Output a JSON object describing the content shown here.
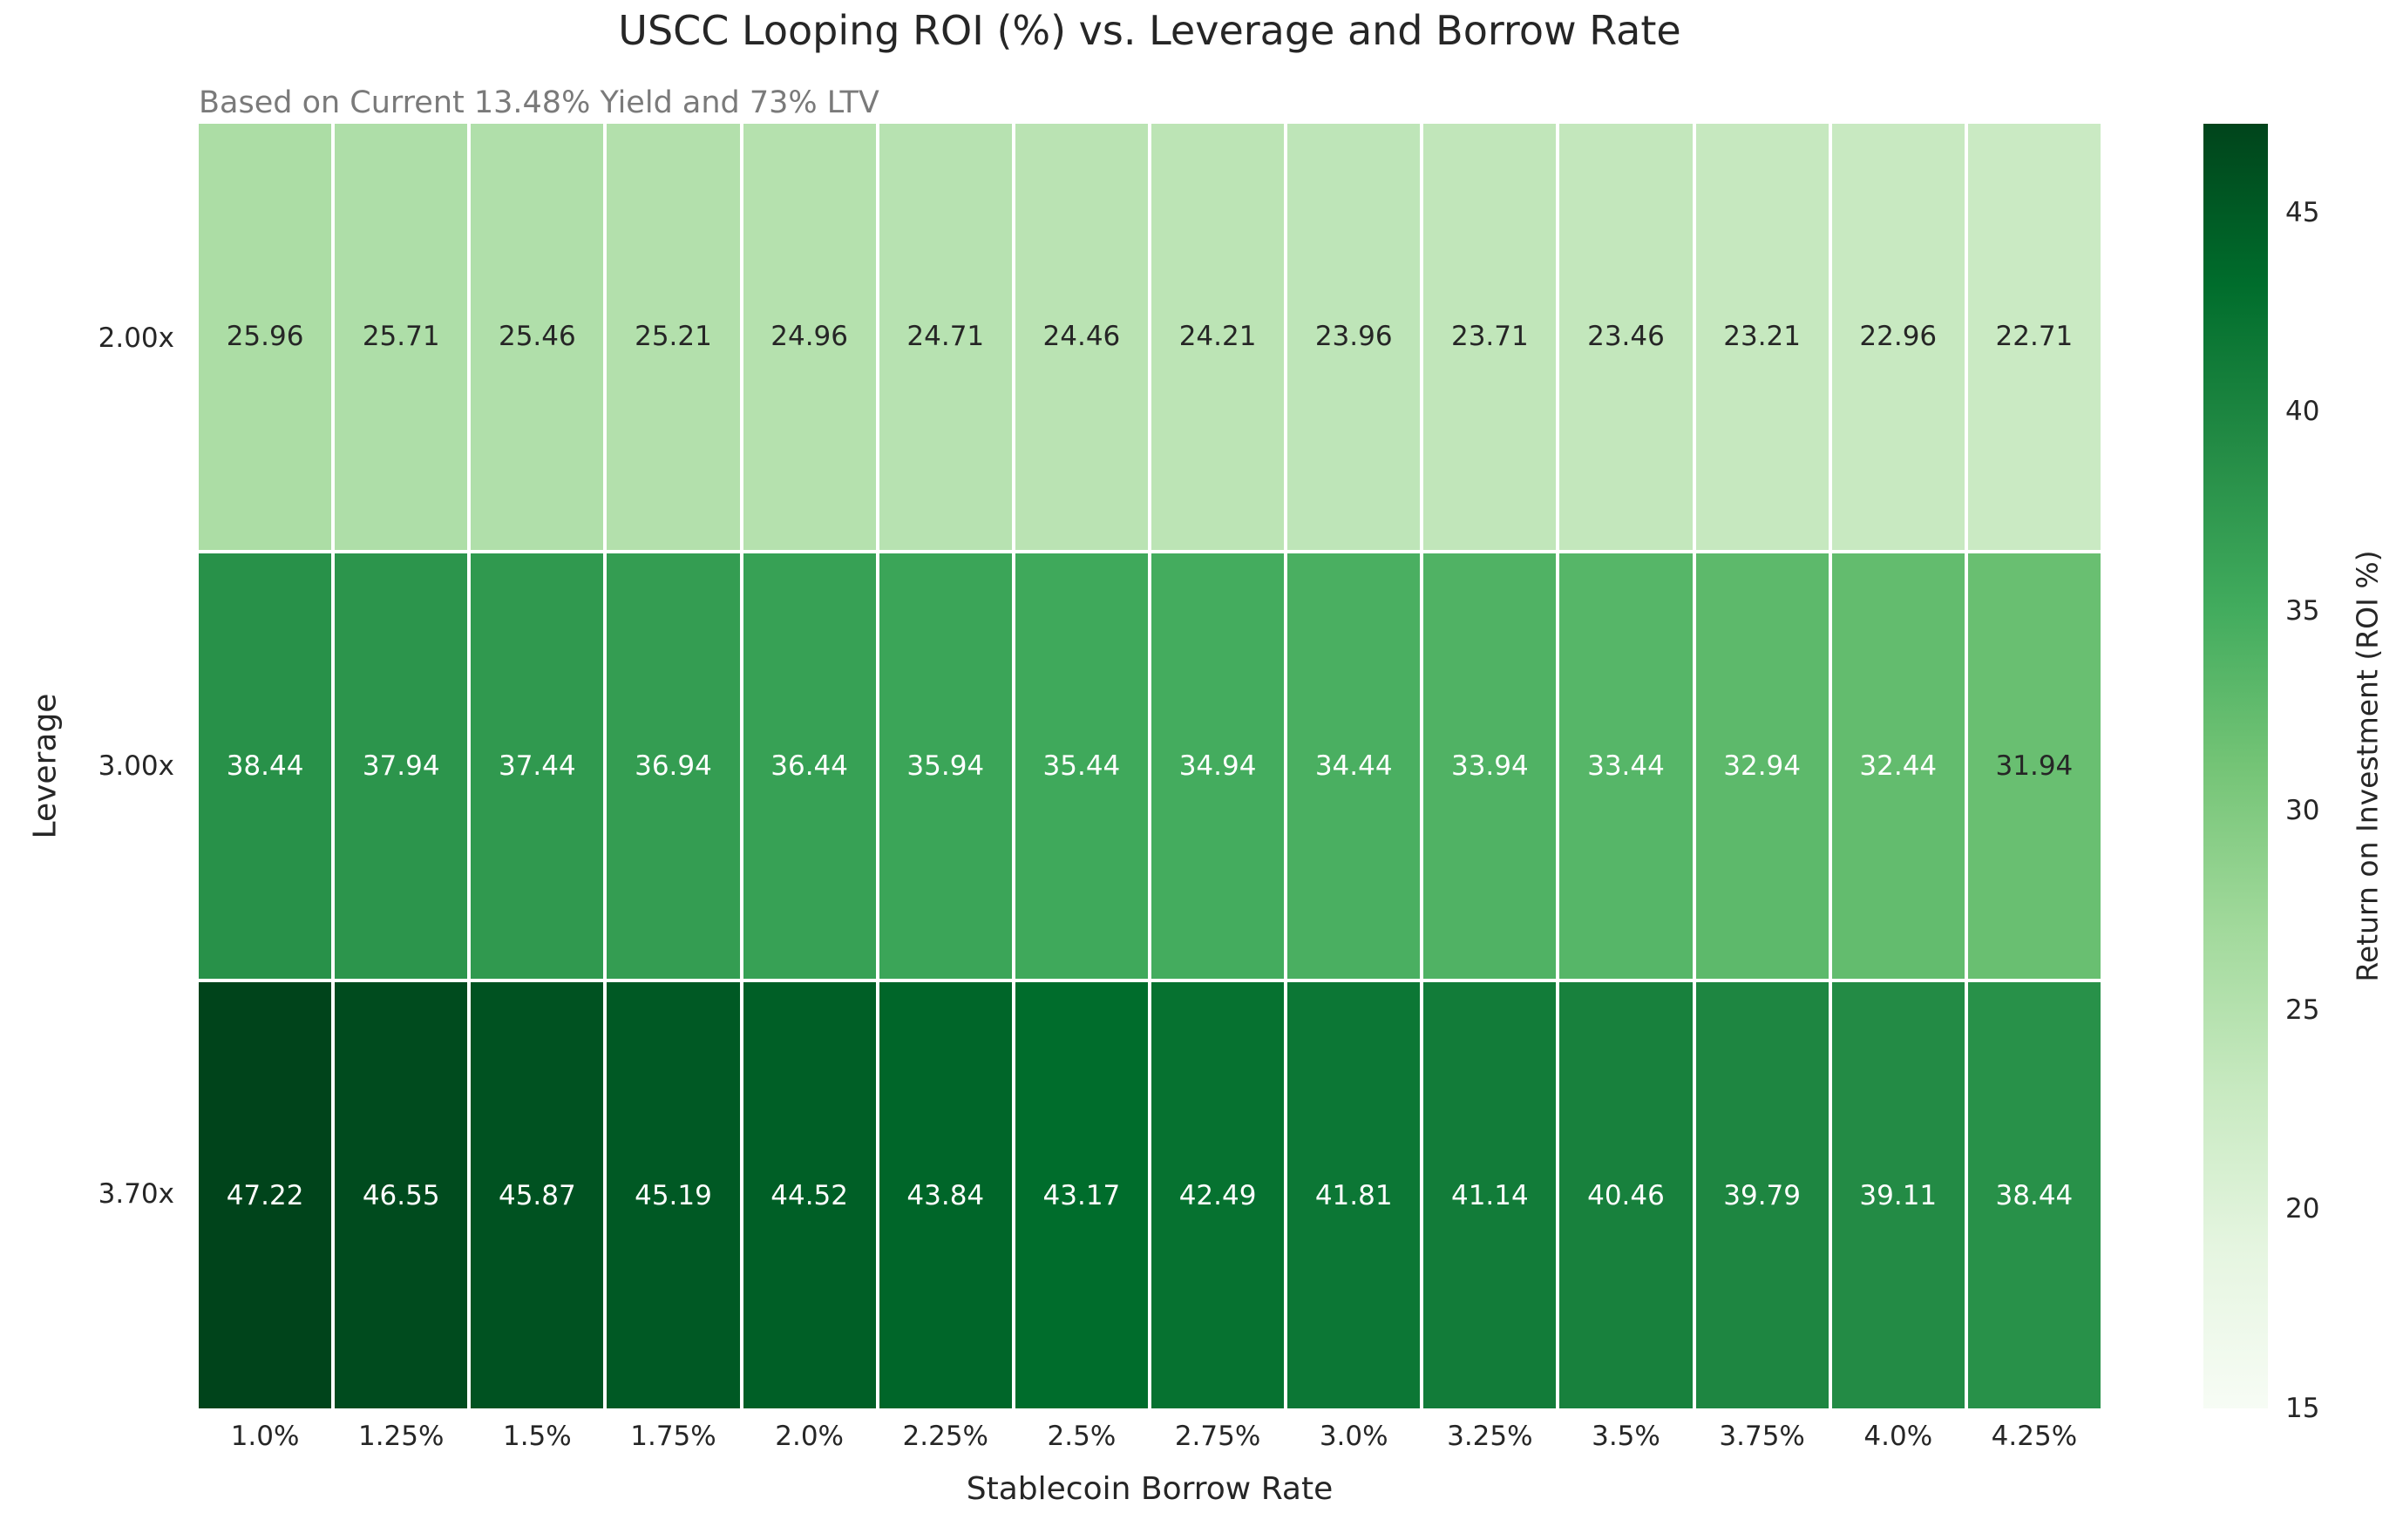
{
  "title": "USCC Looping ROI (%) vs. Leverage and Borrow Rate",
  "subtitle": "Based on Current 13.48% Yield and 73% LTV",
  "chart_data": {
    "type": "heatmap",
    "title": "USCC Looping ROI (%) vs. Leverage and Borrow Rate",
    "subtitle": "Based on Current 13.48% Yield and 73% LTV",
    "xlabel": "Stablecoin Borrow Rate",
    "ylabel": "Leverage",
    "categories": [
      "1.0%",
      "1.25%",
      "1.5%",
      "1.75%",
      "2.0%",
      "2.25%",
      "2.5%",
      "2.75%",
      "3.0%",
      "3.25%",
      "3.5%",
      "3.75%",
      "4.0%",
      "4.25%"
    ],
    "rows": [
      {
        "name": "2.00x",
        "values": [
          25.96,
          25.71,
          25.46,
          25.21,
          24.96,
          24.71,
          24.46,
          24.21,
          23.96,
          23.71,
          23.46,
          23.21,
          22.96,
          22.71
        ]
      },
      {
        "name": "3.00x",
        "values": [
          38.44,
          37.94,
          37.44,
          36.94,
          36.44,
          35.94,
          35.44,
          34.94,
          34.44,
          33.94,
          33.44,
          32.94,
          32.44,
          31.94
        ]
      },
      {
        "name": "3.70x",
        "values": [
          47.22,
          46.55,
          45.87,
          45.19,
          44.52,
          43.84,
          43.17,
          42.49,
          41.81,
          41.14,
          40.46,
          39.79,
          39.11,
          38.44
        ]
      }
    ],
    "value_format_decimals": 2,
    "colormap": "Greens",
    "colormap_stops": [
      "#f7fcf5",
      "#e5f5e0",
      "#c7e9c0",
      "#a1d99b",
      "#74c476",
      "#41ab5d",
      "#238b45",
      "#006d2c",
      "#00441b"
    ],
    "vmin": 15,
    "vmax": 47.22,
    "grid_line_color": "#ffffff",
    "colorbar": {
      "label": "Return on Investment (ROI %)",
      "ticks": [
        15,
        20,
        25,
        30,
        35,
        40,
        45
      ]
    },
    "colors": {
      "dark_text": "#262626",
      "light_text": "#ffffff",
      "subtitle_text": "#7a7a7a"
    },
    "legend_position": "right-colorbar",
    "grid": false
  }
}
